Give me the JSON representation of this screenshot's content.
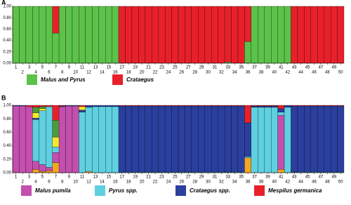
{
  "chart_data": [
    {
      "type": "bar",
      "title": "A",
      "stacked": true,
      "categories": [
        "1",
        "2",
        "3",
        "4",
        "5",
        "6",
        "7",
        "8",
        "9",
        "10",
        "11",
        "12",
        "13",
        "14",
        "15",
        "16",
        "17",
        "18",
        "19",
        "20",
        "21",
        "22",
        "23",
        "24",
        "25",
        "26",
        "27",
        "28",
        "29",
        "30",
        "31",
        "32",
        "33",
        "34",
        "35",
        "36",
        "37",
        "38",
        "39",
        "40",
        "41",
        "42",
        "43",
        "44",
        "45",
        "46",
        "47",
        "48",
        "49",
        "50"
      ],
      "ylim": [
        0,
        1
      ],
      "yticks": [
        {
          "value": 0,
          "label": "0.00"
        },
        {
          "value": 0.2,
          "label": "0.20"
        },
        {
          "value": 0.4,
          "label": "0.40"
        },
        {
          "value": 0.6,
          "label": "0.60"
        },
        {
          "value": 0.8,
          "label": "0.80"
        },
        {
          "value": 1,
          "label": "1.00"
        }
      ],
      "series": [
        {
          "name": "Malus and Pyrus",
          "color": "#5cc24a",
          "values": [
            1,
            1,
            1,
            1,
            1,
            1,
            0.53,
            1,
            1,
            1,
            1,
            1,
            1,
            1,
            1,
            1,
            0,
            0,
            0,
            0,
            0,
            0,
            0,
            0,
            0,
            0,
            0,
            0,
            0,
            0,
            0,
            0,
            0.02,
            0,
            0,
            0.38,
            1,
            1,
            1,
            1,
            1,
            1,
            0,
            0,
            0,
            0,
            0,
            0,
            0,
            0
          ]
        },
        {
          "name": "Crataegus",
          "color": "#e8202a",
          "values": [
            0,
            0,
            0,
            0,
            0,
            0,
            0.47,
            0,
            0,
            0,
            0,
            0,
            0,
            0,
            0,
            0,
            1,
            1,
            1,
            1,
            1,
            1,
            1,
            1,
            1,
            1,
            1,
            1,
            1,
            1,
            1,
            1,
            0.98,
            1,
            1,
            0.62,
            0,
            0,
            0,
            0,
            0,
            0,
            1,
            1,
            1,
            1,
            1,
            1,
            1,
            1
          ]
        }
      ]
    },
    {
      "type": "bar",
      "title": "B",
      "stacked": true,
      "categories": [
        "1",
        "2",
        "3",
        "4",
        "5",
        "6",
        "7",
        "8",
        "9",
        "10",
        "11",
        "12",
        "13",
        "14",
        "15",
        "16",
        "17",
        "18",
        "19",
        "20",
        "21",
        "22",
        "23",
        "24",
        "25",
        "26",
        "27",
        "28",
        "29",
        "30",
        "31",
        "32",
        "33",
        "34",
        "35",
        "36",
        "37",
        "38",
        "39",
        "40",
        "41",
        "42",
        "43",
        "44",
        "45",
        "46",
        "47",
        "48",
        "49",
        "50"
      ],
      "ylim": [
        0,
        1
      ],
      "yticks": [
        {
          "value": 0,
          "label": "0.00"
        },
        {
          "value": 0.2,
          "label": "0.20"
        },
        {
          "value": 0.4,
          "label": "0.40"
        },
        {
          "value": 0.6,
          "label": "0.60"
        },
        {
          "value": 0.8,
          "label": "0.80"
        },
        {
          "value": 1,
          "label": "1.00"
        }
      ],
      "series": [
        {
          "color": "#f5a623",
          "values": [
            0,
            0,
            0,
            0.05,
            0.02,
            0.03,
            0.15,
            0,
            0,
            0,
            0,
            0.02,
            0,
            0,
            0,
            0,
            0,
            0,
            0,
            0,
            0,
            0,
            0,
            0,
            0,
            0,
            0,
            0,
            0,
            0,
            0,
            0,
            0,
            0,
            0,
            0.22,
            0,
            0,
            0,
            0,
            0.05,
            0,
            0,
            0,
            0,
            0,
            0,
            0,
            0,
            0
          ]
        },
        {
          "name": "Malus pumila",
          "color": "#c44fae",
          "values": [
            0.99,
            0.99,
            0.98,
            0.12,
            0.1,
            0.05,
            0.15,
            0.98,
            0.99,
            0.99,
            0,
            0,
            0,
            0,
            0,
            0,
            0,
            0,
            0,
            0,
            0,
            0,
            0,
            0,
            0,
            0,
            0,
            0,
            0,
            0,
            0,
            0,
            0,
            0,
            0,
            0,
            0,
            0,
            0,
            0,
            0.8,
            0,
            0,
            0,
            0,
            0,
            0,
            0,
            0,
            0
          ]
        },
        {
          "name": "Pyrus spp.",
          "color": "#5fd0e0",
          "values": [
            0,
            0,
            0,
            0.62,
            0.8,
            0.9,
            0.08,
            0,
            0,
            0,
            0.9,
            0.95,
            0.98,
            0.98,
            0.98,
            0.98,
            0.01,
            0.01,
            0.01,
            0.01,
            0.01,
            0.01,
            0.01,
            0.01,
            0.01,
            0.01,
            0.01,
            0.01,
            0.01,
            0.01,
            0.01,
            0.01,
            0.01,
            0.01,
            0.01,
            0.02,
            0.97,
            0.97,
            0.97,
            0.97,
            0.05,
            0.97,
            0.01,
            0.01,
            0.01,
            0.01,
            0.01,
            0.01,
            0.01,
            0.01
          ]
        },
        {
          "name": "Crataegus spp.",
          "color": "#2a3f9e",
          "values": [
            0.01,
            0.01,
            0,
            0.02,
            0,
            0,
            0,
            0.01,
            0.01,
            0.01,
            0.03,
            0.03,
            0.02,
            0.02,
            0.02,
            0.02,
            0.98,
            0.98,
            0.98,
            0.98,
            0.98,
            0.98,
            0.98,
            0.98,
            0.98,
            0.98,
            0.98,
            0.98,
            0.98,
            0.98,
            0.98,
            0.98,
            0.98,
            0.98,
            0.98,
            0.5,
            0.02,
            0.02,
            0.02,
            0.02,
            0.05,
            0.03,
            0.98,
            0.98,
            0.98,
            0.98,
            0.98,
            0.98,
            0.98,
            0.98
          ]
        },
        {
          "color": "#f3e92a",
          "values": [
            0,
            0,
            0,
            0.08,
            0.03,
            0,
            0.15,
            0,
            0,
            0,
            0.05,
            0,
            0,
            0,
            0,
            0,
            0,
            0,
            0,
            0,
            0,
            0,
            0,
            0,
            0,
            0,
            0,
            0,
            0,
            0,
            0,
            0,
            0,
            0,
            0,
            0,
            0,
            0,
            0,
            0,
            0,
            0,
            0,
            0,
            0,
            0,
            0,
            0,
            0,
            0
          ]
        },
        {
          "color": "#4e9a3a",
          "values": [
            0,
            0,
            0,
            0.08,
            0.03,
            0,
            0.25,
            0,
            0,
            0,
            0,
            0,
            0,
            0,
            0,
            0,
            0,
            0,
            0,
            0,
            0,
            0,
            0,
            0,
            0,
            0,
            0,
            0,
            0,
            0,
            0,
            0,
            0,
            0,
            0,
            0,
            0,
            0,
            0,
            0,
            0,
            0,
            0,
            0,
            0,
            0,
            0,
            0,
            0,
            0
          ]
        },
        {
          "name": "Mespilus germanica",
          "color": "#e8202a",
          "values": [
            0,
            0,
            0.02,
            0.03,
            0.02,
            0.02,
            0.22,
            0.01,
            0,
            0,
            0.02,
            0,
            0,
            0,
            0,
            0,
            0.01,
            0.01,
            0.01,
            0.01,
            0.01,
            0.01,
            0.01,
            0.01,
            0.01,
            0.01,
            0.01,
            0.01,
            0.01,
            0.01,
            0.01,
            0.01,
            0.01,
            0.01,
            0.01,
            0.26,
            0.01,
            0.01,
            0.01,
            0.01,
            0.05,
            0,
            0.01,
            0.01,
            0.01,
            0.01,
            0.01,
            0.01,
            0.01,
            0.01
          ]
        }
      ]
    }
  ]
}
